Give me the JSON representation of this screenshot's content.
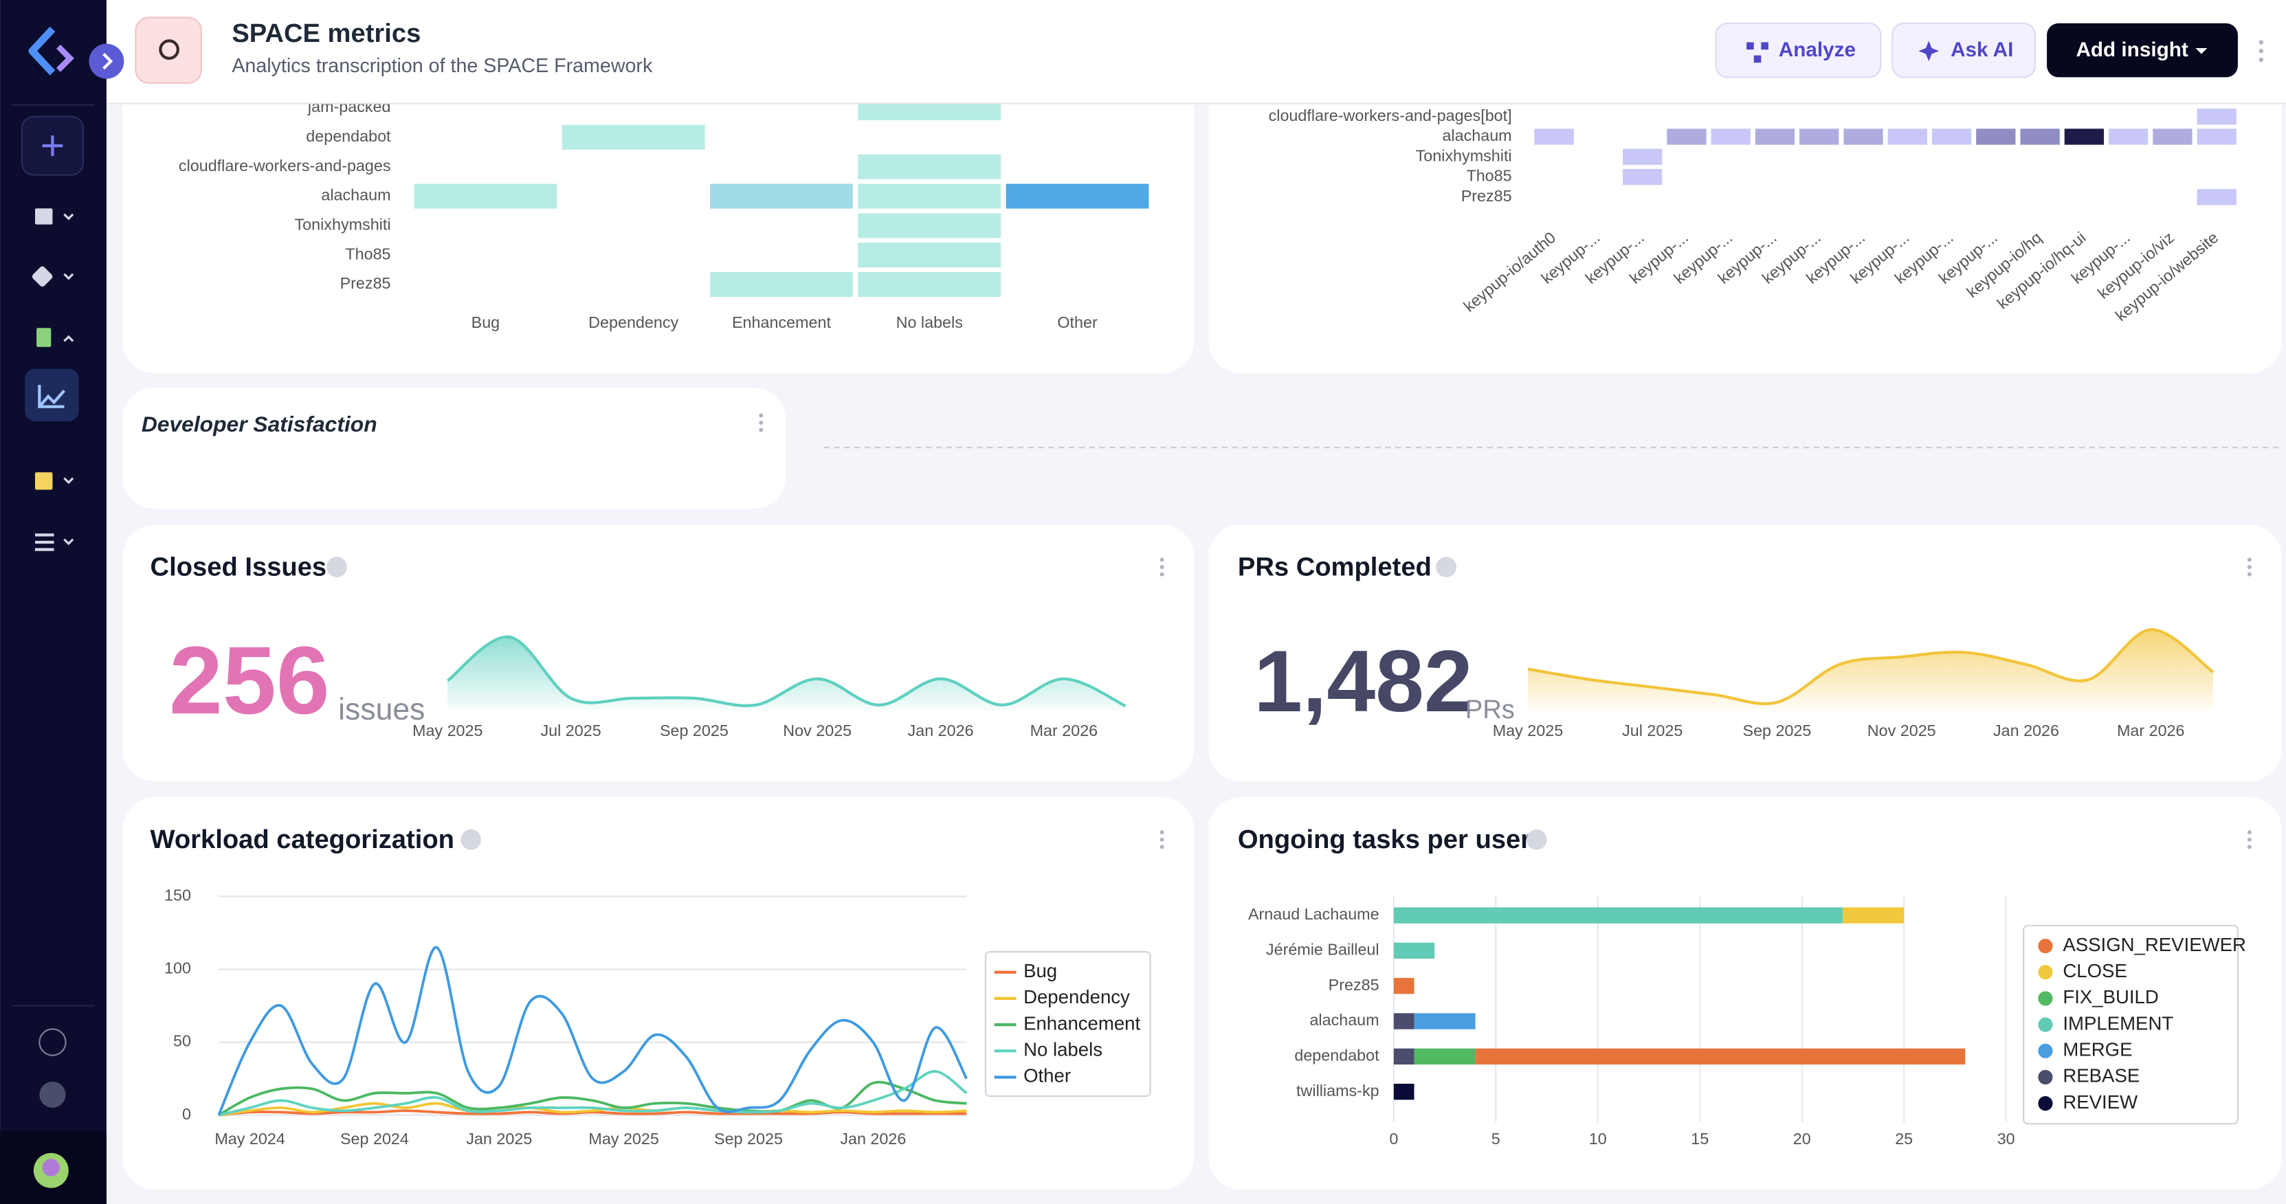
{
  "header": {
    "title": "SPACE metrics",
    "subtitle": "Analytics transcription of the SPACE Framework"
  },
  "buttons": [
    "Analyze",
    "Ask AI",
    "Add insight"
  ],
  "cards": {
    "developer_satisfaction": "Developer Satisfaction"
  },
  "chart_data": [
    {
      "type": "heatmap",
      "rows": [
        "jam-packed",
        "dependabot",
        "cloudflare-workers-and-pages",
        "alachaum",
        "Tonixhymshiti",
        "Tho85",
        "Prez85"
      ],
      "columns": [
        "Bug",
        "Dependency",
        "Enhancement",
        "No labels",
        "Other"
      ],
      "values": [
        [
          null,
          null,
          null,
          1,
          null
        ],
        [
          null,
          1,
          null,
          null,
          null
        ],
        [
          null,
          null,
          null,
          1,
          null
        ],
        [
          1,
          null,
          2,
          1,
          3
        ],
        [
          null,
          null,
          null,
          1,
          null
        ],
        [
          null,
          null,
          null,
          1,
          null
        ],
        [
          null,
          null,
          1,
          1,
          null
        ]
      ],
      "colors": [
        "#b6ece4",
        "#9fdbe6",
        "#4ea9e6"
      ]
    },
    {
      "type": "heatmap",
      "rows": [
        "cloudflare-workers-and-pages[bot]",
        "alachaum",
        "Tonixhymshiti",
        "Tho85",
        "Prez85"
      ],
      "columns": [
        "keypup-io/auth0",
        "keypup-...",
        "keypup-...",
        "keypup-...",
        "keypup-...",
        "keypup-...",
        "keypup-...",
        "keypup-...",
        "keypup-...",
        "keypup-...",
        "keypup-...",
        "keypup-io/hq",
        "keypup-io/hq-ui",
        "keypup-...",
        "keypup-io/viz",
        "keypup-io/website"
      ],
      "values": [
        [
          null,
          null,
          null,
          null,
          null,
          null,
          null,
          null,
          null,
          null,
          null,
          null,
          null,
          null,
          null,
          1
        ],
        [
          1,
          null,
          null,
          2,
          1,
          2,
          2,
          2,
          1,
          1,
          3,
          3,
          5,
          1,
          2,
          1
        ],
        [
          null,
          null,
          1,
          null,
          null,
          null,
          null,
          null,
          null,
          null,
          null,
          null,
          null,
          null,
          null,
          null
        ],
        [
          null,
          null,
          1,
          null,
          null,
          null,
          null,
          null,
          null,
          null,
          null,
          null,
          null,
          null,
          null,
          null
        ],
        [
          null,
          null,
          null,
          null,
          null,
          null,
          null,
          null,
          null,
          null,
          null,
          null,
          null,
          null,
          null,
          1
        ]
      ],
      "colors": [
        "#c8c7f7",
        "#aeacdf",
        "#8f8dc4",
        "#5d5b8e",
        "#1d1c48"
      ]
    },
    {
      "type": "kpi",
      "title": "Closed Issues",
      "kpi": {
        "value": 256,
        "label": "256",
        "unit": "issues"
      },
      "kpi_color": "#e274b4",
      "color": "#5fd0c0",
      "categories": [
        "May 2025",
        null,
        "Jul 2025",
        null,
        "Sep 2025",
        null,
        "Nov 2025",
        null,
        "Jan 2026",
        null,
        "Mar 2026",
        null
      ],
      "values": [
        30,
        75,
        12,
        12,
        12,
        5,
        32,
        5,
        32,
        5,
        32,
        4
      ]
    },
    {
      "type": "kpi",
      "title": "PRs Completed",
      "kpi": {
        "value": 1482,
        "label": "1,482",
        "unit": "PRs"
      },
      "kpi_color": "#464866",
      "color": "#f2c43b",
      "categories": [
        "May 2025",
        null,
        "Jul 2025",
        null,
        "Sep 2025",
        null,
        "Nov 2025",
        null,
        "Jan 2026",
        null,
        "Mar 2026",
        null
      ],
      "values": [
        135,
        100,
        75,
        50,
        25,
        150,
        175,
        190,
        150,
        100,
        265,
        125
      ]
    },
    {
      "type": "line",
      "title": "Workload categorization",
      "grid": true,
      "legend": "right",
      "categories": [
        null,
        "May 2024",
        null,
        null,
        null,
        "Sep 2024",
        null,
        null,
        null,
        "Jan 2025",
        null,
        null,
        null,
        "May 2025",
        null,
        null,
        null,
        "Sep 2025",
        null,
        null,
        null,
        "Jan 2026",
        null,
        null,
        null
      ],
      "ylim": [
        0,
        150
      ],
      "yticks": [
        0,
        50,
        100,
        150
      ],
      "series": [
        {
          "name": "Bug",
          "color": "#f2733a",
          "values": [
            0,
            2,
            2,
            1,
            2,
            2,
            3,
            2,
            1,
            1,
            2,
            1,
            2,
            1,
            1,
            2,
            1,
            1,
            1,
            1,
            2,
            1,
            1,
            1,
            1
          ]
        },
        {
          "name": "Dependency",
          "color": "#f4c531",
          "values": [
            0,
            3,
            5,
            2,
            5,
            8,
            5,
            8,
            3,
            5,
            5,
            2,
            3,
            5,
            3,
            5,
            3,
            2,
            3,
            2,
            3,
            2,
            3,
            2,
            3
          ]
        },
        {
          "name": "Enhancement",
          "color": "#4bb863",
          "values": [
            0,
            12,
            18,
            18,
            10,
            15,
            15,
            15,
            5,
            5,
            8,
            12,
            10,
            5,
            8,
            8,
            5,
            3,
            3,
            10,
            5,
            22,
            18,
            10,
            8
          ]
        },
        {
          "name": "No labels",
          "color": "#5fd3bf",
          "values": [
            0,
            5,
            10,
            5,
            3,
            5,
            8,
            12,
            3,
            3,
            5,
            5,
            5,
            3,
            3,
            5,
            3,
            2,
            3,
            8,
            5,
            10,
            18,
            30,
            15
          ]
        },
        {
          "name": "Other",
          "color": "#3f9ae0",
          "values": [
            0,
            50,
            75,
            35,
            25,
            90,
            50,
            115,
            30,
            20,
            78,
            70,
            25,
            30,
            55,
            40,
            5,
            5,
            10,
            45,
            65,
            50,
            10,
            60,
            25
          ]
        }
      ]
    },
    {
      "type": "hbar",
      "title": "Ongoing tasks per user",
      "stacked": true,
      "grid": true,
      "legend": "right",
      "categories": [
        "Arnaud Lachaume",
        "Jérémie Bailleul",
        "Prez85",
        "alachaum",
        "dependabot",
        "twilliams-kp"
      ],
      "xlim": [
        0,
        30
      ],
      "xticks": [
        0,
        5,
        10,
        15,
        20,
        25,
        30
      ],
      "series": [
        {
          "name": "ASSIGN_REVIEWER",
          "color": "#e8743b",
          "values": [
            null,
            null,
            1,
            null,
            24,
            null
          ]
        },
        {
          "name": "CLOSE",
          "color": "#f0c93c",
          "values": [
            3,
            null,
            null,
            null,
            null,
            null
          ]
        },
        {
          "name": "FIX_BUILD",
          "color": "#52b963",
          "values": [
            null,
            null,
            null,
            null,
            3,
            null
          ]
        },
        {
          "name": "IMPLEMENT",
          "color": "#62cbb5",
          "values": [
            22,
            2,
            null,
            null,
            null,
            null
          ]
        },
        {
          "name": "MERGE",
          "color": "#4a9ee0",
          "values": [
            null,
            null,
            null,
            3,
            null,
            null
          ]
        },
        {
          "name": "REBASE",
          "color": "#4a4d6b",
          "values": [
            null,
            null,
            null,
            1,
            1,
            null
          ]
        },
        {
          "name": "REVIEW",
          "color": "#0b0b3a",
          "values": [
            null,
            null,
            null,
            null,
            null,
            1
          ]
        }
      ]
    }
  ]
}
